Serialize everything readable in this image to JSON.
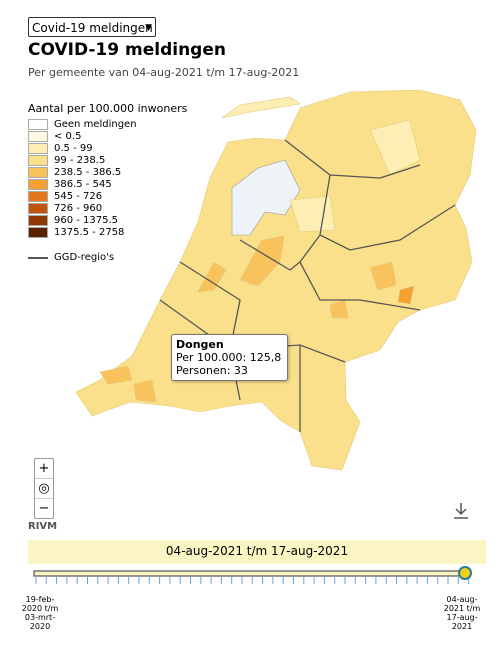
{
  "selector": {
    "selected": "Covid-19 meldingen"
  },
  "header": {
    "title": "COVID-19 meldingen",
    "subtitle": "Per gemeente van 04-aug-2021 t/m 17-aug-2021"
  },
  "legend": {
    "title": "Aantal per 100.000 inwoners",
    "items": [
      {
        "label": "Geen meldingen",
        "color": "#ffffff"
      },
      {
        "label": "< 0.5",
        "color": "#fffbe3"
      },
      {
        "label": "0.5 - 99",
        "color": "#fdefb3"
      },
      {
        "label": "99 - 238.5",
        "color": "#fbe08c"
      },
      {
        "label": "238.5 - 386.5",
        "color": "#f8c25c"
      },
      {
        "label": "386.5 - 545",
        "color": "#f5a132"
      },
      {
        "label": "545 - 726",
        "color": "#e2781b"
      },
      {
        "label": "726 - 960",
        "color": "#c2550e"
      },
      {
        "label": "960 - 1375.5",
        "color": "#8e3806"
      },
      {
        "label": "1375.5 - 2758",
        "color": "#5a2202"
      }
    ],
    "boundary_label": "GGD-regio's"
  },
  "tooltip": {
    "name": "Dongen",
    "per_100000": "Per 100.000: 125,8",
    "persons": "Personen: 33"
  },
  "controls": {
    "zoom_in": "+",
    "zoom_out": "−",
    "source": "RIVM"
  },
  "timeline": {
    "current": "04-aug-2021 t/m 17-aug-2021",
    "start_label": [
      "19-feb-",
      "2020 t/m",
      "03-mrt-",
      "2020"
    ],
    "end_label": [
      "04-aug-",
      "2021 t/m",
      "17-aug-",
      "2021"
    ]
  }
}
